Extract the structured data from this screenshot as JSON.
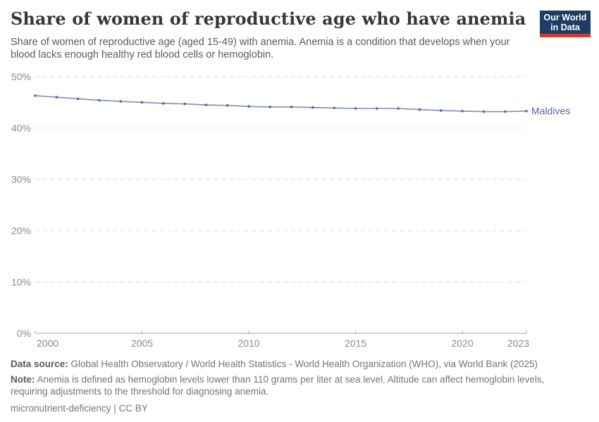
{
  "header": {
    "title": "Share of women of reproductive age who have anemia",
    "subtitle": "Share of women of reproductive age (aged 15-49) with anemia. Anemia is a condition that develops when your blood lacks enough healthy red blood cells or hemoglobin.",
    "logo": {
      "line1": "Our World",
      "line2": "in Data",
      "bg_color": "#1d3d63",
      "accent_color": "#d7382e"
    }
  },
  "chart_data": {
    "type": "line",
    "title": "Share of women of reproductive age who have anemia",
    "xlabel": "",
    "ylabel": "",
    "xlim": [
      2000,
      2023
    ],
    "ylim": [
      0,
      50
    ],
    "yticks": [
      0,
      10,
      20,
      30,
      40,
      50
    ],
    "ytick_suffix": "%",
    "xticks": [
      2000,
      2005,
      2010,
      2015,
      2020,
      2023
    ],
    "grid": "horizontal-dashed",
    "grid_color": "#dcdcdc",
    "axis_color": "#a5a5a5",
    "tick_color": "#8b8b8b",
    "series": [
      {
        "name": "Maldives",
        "color": "#4c6a9c",
        "x": [
          2000,
          2001,
          2002,
          2003,
          2004,
          2005,
          2006,
          2007,
          2008,
          2009,
          2010,
          2011,
          2012,
          2013,
          2014,
          2015,
          2016,
          2017,
          2018,
          2019,
          2020,
          2021,
          2022,
          2023
        ],
        "values": [
          46.3,
          46.0,
          45.7,
          45.4,
          45.2,
          45.0,
          44.8,
          44.7,
          44.5,
          44.4,
          44.2,
          44.1,
          44.1,
          44.0,
          43.9,
          43.8,
          43.8,
          43.8,
          43.6,
          43.4,
          43.3,
          43.2,
          43.2,
          43.3
        ]
      }
    ]
  },
  "footer": {
    "data_source_label": "Data source:",
    "data_source_text": " Global Health Observatory / World Health Statistics - World Health Organization (WHO), via World Bank (2025)",
    "note_label": "Note:",
    "note_text": " Anemia is defined as hemoglobin levels lower than 110 grams per liter at sea level. Altitude can affect hemoglobin levels, requiring adjustments to the threshold for diagnosing anemia.",
    "attribution": "micronutrient-deficiency | CC BY"
  }
}
